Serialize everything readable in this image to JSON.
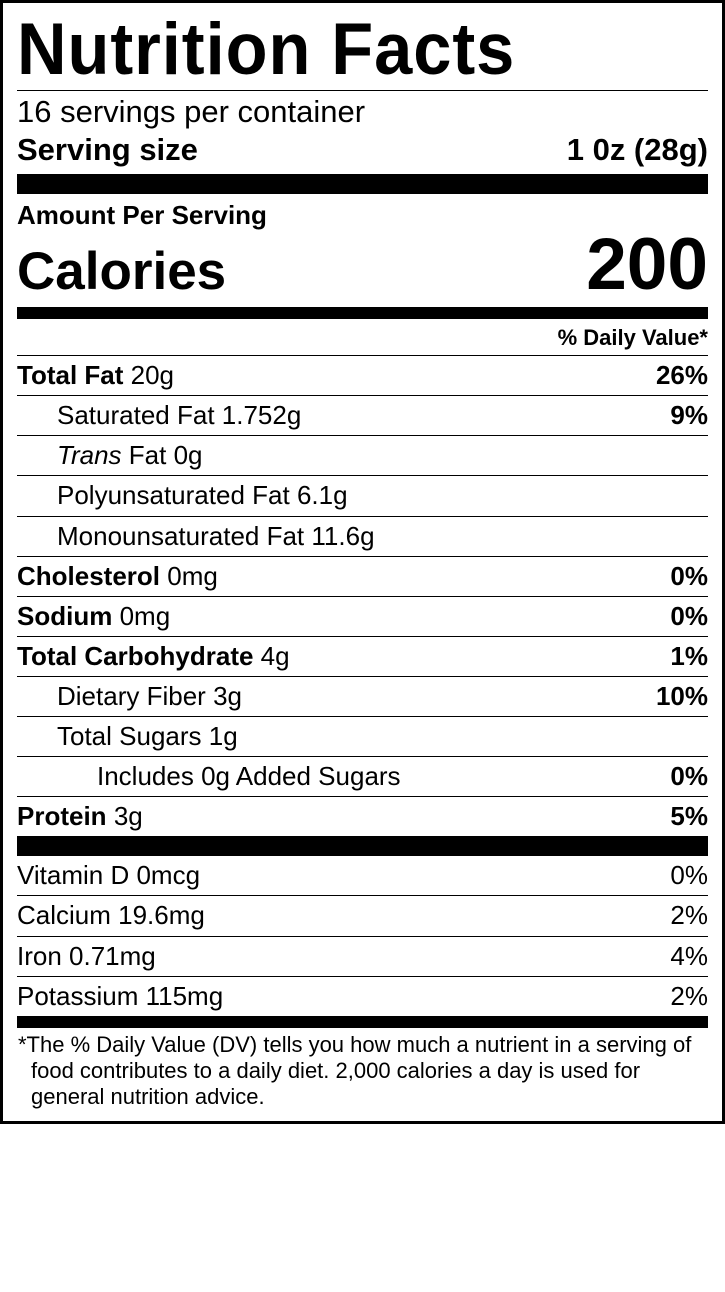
{
  "title": "Nutrition Facts",
  "servings_per_container": "16 servings per container",
  "serving_size_label": "Serving size",
  "serving_size_value": "1 0z (28g)",
  "amount_per_serving": "Amount Per Serving",
  "calories_label": "Calories",
  "calories_value": "200",
  "daily_value_header": "% Daily Value*",
  "nutrients": {
    "total_fat": {
      "label": "Total Fat",
      "amount": "20g",
      "dv": "26%"
    },
    "sat_fat": {
      "label": "Saturated Fat",
      "amount": "1.752g",
      "dv": "9%"
    },
    "trans_fat": {
      "prefix_italic": "Trans",
      "suffix": " Fat",
      "amount": "0g"
    },
    "poly_fat": {
      "label": "Polyunsaturated Fat",
      "amount": "6.1g"
    },
    "mono_fat": {
      "label": "Monounsaturated Fat",
      "amount": "11.6g"
    },
    "cholesterol": {
      "label": "Cholesterol",
      "amount": "0mg",
      "dv": "0%"
    },
    "sodium": {
      "label": "Sodium",
      "amount": "0mg",
      "dv": "0%"
    },
    "total_carb": {
      "label": "Total Carbohydrate",
      "amount": "4g",
      "dv": "1%"
    },
    "fiber": {
      "label": "Dietary Fiber",
      "amount": "3g",
      "dv": "10%"
    },
    "sugars": {
      "label": "Total Sugars",
      "amount": "1g"
    },
    "added_sugars": {
      "text": "Includes 0g Added Sugars",
      "dv": "0%"
    },
    "protein": {
      "label": "Protein",
      "amount": "3g",
      "dv": "5%"
    }
  },
  "vitamins": {
    "vitd": {
      "text": "Vitamin D 0mcg",
      "dv": "0%"
    },
    "calcium": {
      "text": "Calcium 19.6mg",
      "dv": "2%"
    },
    "iron": {
      "text": "Iron 0.71mg",
      "dv": "4%"
    },
    "potassium": {
      "text": "Potassium 115mg",
      "dv": "2%"
    }
  },
  "footnote": "*The % Daily Value (DV) tells you how much a nutrient in a serving of food contributes to a daily diet. 2,000 calories a day is used for general nutrition advice."
}
